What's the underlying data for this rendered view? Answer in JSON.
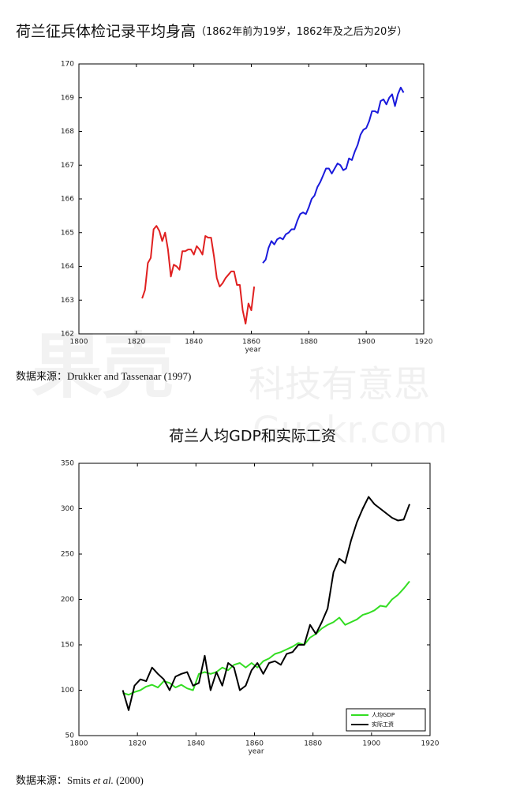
{
  "chart_data": [
    {
      "type": "line",
      "title": "荷兰征兵体检记录平均身高",
      "subtitle": "（1862年前为19岁，1862年及之后为20岁）",
      "x_label": "year",
      "source": [
        "数据来源：Drukker and Tassenaar (1997)"
      ],
      "xlim": [
        1800,
        1920
      ],
      "xticks": [
        1800,
        1820,
        1840,
        1860,
        1880,
        1900,
        1920
      ],
      "ylim": [
        162,
        170
      ],
      "yticks": [
        162,
        163,
        164,
        165,
        166,
        167,
        168,
        169,
        170
      ],
      "series": [
        {
          "color": "#e02020",
          "x": [
            1822,
            1823,
            1824,
            1825,
            1826,
            1827,
            1828,
            1829,
            1830,
            1831,
            1832,
            1833,
            1834,
            1835,
            1836,
            1837,
            1838,
            1839,
            1840,
            1841,
            1842,
            1843,
            1844,
            1845,
            1846,
            1847,
            1848,
            1849,
            1850,
            1851,
            1852,
            1853,
            1854,
            1855,
            1856,
            1857,
            1858,
            1859,
            1860,
            1861
          ],
          "values": [
            163.05,
            163.3,
            164.1,
            164.25,
            165.1,
            165.2,
            165.05,
            164.75,
            165.0,
            164.5,
            163.7,
            164.05,
            164.0,
            163.9,
            164.45,
            164.45,
            164.5,
            164.5,
            164.35,
            164.6,
            164.5,
            164.35,
            164.9,
            164.85,
            164.85,
            164.3,
            163.65,
            163.4,
            163.5,
            163.65,
            163.75,
            163.85,
            163.85,
            163.45,
            163.45,
            162.7,
            162.3,
            162.9,
            162.7,
            163.4
          ]
        },
        {
          "color": "#1a1adc",
          "x": [
            1864,
            1865,
            1866,
            1867,
            1868,
            1869,
            1870,
            1871,
            1872,
            1873,
            1874,
            1875,
            1876,
            1877,
            1878,
            1879,
            1880,
            1881,
            1882,
            1883,
            1884,
            1885,
            1886,
            1887,
            1888,
            1889,
            1890,
            1891,
            1892,
            1893,
            1894,
            1895,
            1896,
            1897,
            1898,
            1899,
            1900,
            1901,
            1902,
            1903,
            1904,
            1905,
            1906,
            1907,
            1908,
            1909,
            1910,
            1911,
            1912,
            1913
          ],
          "values": [
            164.1,
            164.2,
            164.55,
            164.75,
            164.65,
            164.8,
            164.85,
            164.8,
            164.95,
            165.0,
            165.1,
            165.1,
            165.35,
            165.55,
            165.6,
            165.55,
            165.75,
            166.0,
            166.1,
            166.35,
            166.5,
            166.7,
            166.9,
            166.9,
            166.75,
            166.9,
            167.05,
            167.0,
            166.85,
            166.9,
            167.2,
            167.15,
            167.4,
            167.6,
            167.9,
            168.05,
            168.1,
            168.3,
            168.6,
            168.6,
            168.55,
            168.9,
            168.95,
            168.8,
            169.0,
            169.1,
            168.75,
            169.1,
            169.3,
            169.15
          ]
        }
      ]
    },
    {
      "type": "line",
      "title": "荷兰人均GDP和实际工资",
      "x_label": "year",
      "source": [
        "数据来源：Smits ",
        "et al.",
        " (2000)"
      ],
      "xlim": [
        1800,
        1920
      ],
      "xticks": [
        1800,
        1820,
        1840,
        1860,
        1880,
        1900,
        1920
      ],
      "ylim": [
        50,
        350
      ],
      "yticks": [
        50,
        100,
        150,
        200,
        250,
        300,
        350
      ],
      "legend": "lower right",
      "x": [
        1815,
        1817,
        1819,
        1821,
        1823,
        1825,
        1827,
        1829,
        1831,
        1833,
        1835,
        1837,
        1839,
        1841,
        1843,
        1845,
        1847,
        1849,
        1851,
        1853,
        1855,
        1857,
        1859,
        1861,
        1863,
        1865,
        1867,
        1869,
        1871,
        1873,
        1875,
        1877,
        1879,
        1881,
        1883,
        1885,
        1887,
        1889,
        1891,
        1893,
        1895,
        1897,
        1899,
        1901,
        1903,
        1905,
        1907,
        1909,
        1911,
        1913
      ],
      "series": [
        {
          "name": "人均GDP",
          "color": "#33dd22",
          "values": [
            97,
            95,
            98,
            100,
            104,
            106,
            103,
            110,
            108,
            103,
            106,
            102,
            100,
            118,
            120,
            118,
            120,
            125,
            122,
            128,
            130,
            125,
            130,
            125,
            132,
            135,
            140,
            142,
            145,
            148,
            152,
            150,
            158,
            162,
            168,
            172,
            175,
            180,
            172,
            175,
            178,
            183,
            185,
            188,
            193,
            192,
            200,
            205,
            212,
            220
          ]
        },
        {
          "name": "实际工资",
          "color": "#000000",
          "values": [
            100,
            78,
            105,
            112,
            110,
            125,
            118,
            112,
            100,
            115,
            118,
            120,
            105,
            108,
            138,
            100,
            120,
            105,
            130,
            125,
            100,
            105,
            122,
            130,
            118,
            130,
            132,
            128,
            140,
            142,
            150,
            150,
            172,
            162,
            175,
            190,
            230,
            245,
            240,
            265,
            285,
            300,
            313,
            305,
            300,
            295,
            290,
            287,
            288,
            305
          ]
        }
      ]
    }
  ],
  "watermark": [
    "果壳",
    "科技有意思",
    "Guokr.com"
  ]
}
